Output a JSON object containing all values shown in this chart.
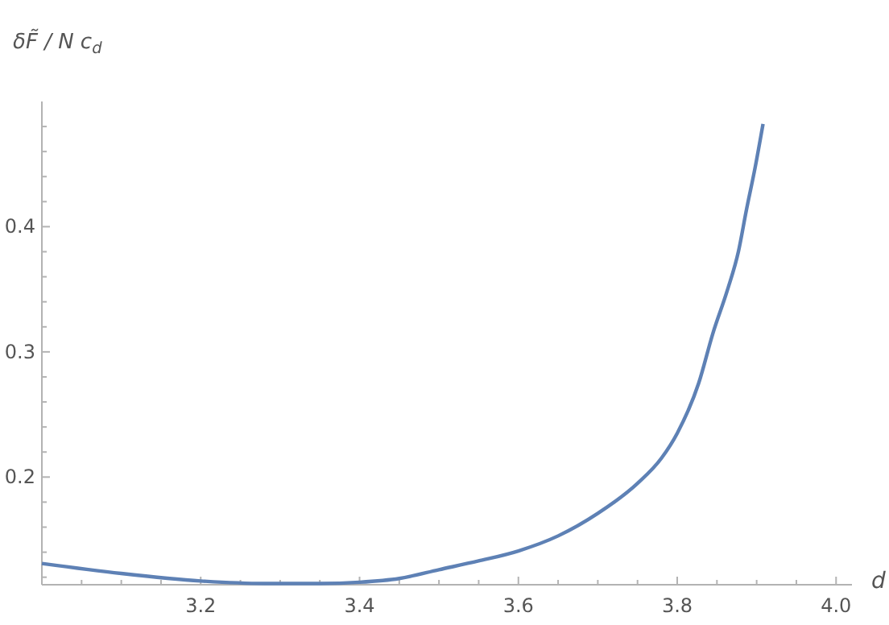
{
  "chart_data": {
    "type": "line",
    "xlabel": "d",
    "ylabel": "δF̃ / N c$_{d}$",
    "x": [
      3.0,
      3.1,
      3.2,
      3.28,
      3.35,
      3.4,
      3.45,
      3.5,
      3.55,
      3.6,
      3.65,
      3.7,
      3.75,
      3.78,
      3.8,
      3.827,
      3.845,
      3.863,
      3.877,
      3.887,
      3.898,
      3.908
    ],
    "series": [
      {
        "color": "#5e81b5",
        "values": [
          0.131,
          0.123,
          0.117,
          0.115,
          0.115,
          0.116,
          0.119,
          0.126,
          0.133,
          0.141,
          0.153,
          0.171,
          0.195,
          0.215,
          0.235,
          0.275,
          0.315,
          0.349,
          0.38,
          0.413,
          0.447,
          0.482
        ]
      }
    ],
    "xlim": [
      3.0,
      4.02
    ],
    "ylim": [
      0.114,
      0.5
    ],
    "xticks": [
      {
        "value": 3.05,
        "label": null
      },
      {
        "value": 3.1,
        "label": null
      },
      {
        "value": 3.15,
        "label": null
      },
      3.2,
      {
        "value": 3.25,
        "label": null
      },
      {
        "value": 3.3,
        "label": null
      },
      {
        "value": 3.35,
        "label": null
      },
      3.4,
      {
        "value": 3.45,
        "label": null
      },
      {
        "value": 3.5,
        "label": null
      },
      {
        "value": 3.55,
        "label": null
      },
      3.6,
      {
        "value": 3.65,
        "label": null
      },
      {
        "value": 3.7,
        "label": null
      },
      {
        "value": 3.75,
        "label": null
      },
      3.8,
      {
        "value": 3.85,
        "label": null
      },
      {
        "value": 3.9,
        "label": null
      },
      {
        "value": 3.95,
        "label": null
      },
      {
        "value": 4.0,
        "label": "4.0"
      }
    ],
    "yticks": [
      {
        "value": 0.12,
        "label": null
      },
      {
        "value": 0.14,
        "label": null
      },
      {
        "value": 0.16,
        "label": null
      },
      {
        "value": 0.18,
        "label": null
      },
      0.2,
      {
        "value": 0.22,
        "label": null
      },
      {
        "value": 0.24,
        "label": null
      },
      {
        "value": 0.26,
        "label": null
      },
      {
        "value": 0.28,
        "label": null
      },
      0.3,
      {
        "value": 0.32,
        "label": null
      },
      {
        "value": 0.34,
        "label": null
      },
      {
        "value": 0.36,
        "label": null
      },
      {
        "value": 0.38,
        "label": null
      },
      0.4,
      {
        "value": 0.42,
        "label": null
      },
      {
        "value": 0.44,
        "label": null
      },
      {
        "value": 0.46,
        "label": null
      },
      {
        "value": 0.48,
        "label": null
      }
    ],
    "grid": false,
    "marker": "none",
    "line_style": "solid"
  }
}
